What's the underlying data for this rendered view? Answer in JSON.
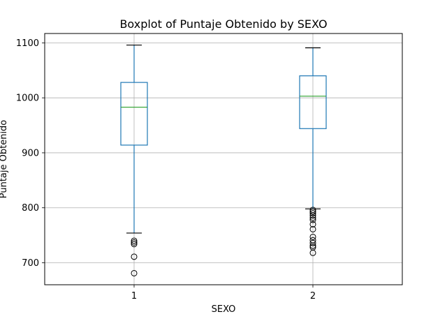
{
  "chart_data": {
    "type": "box",
    "title": "Boxplot of Puntaje Obtenido by SEXO",
    "xlabel": "SEXO",
    "ylabel": "Puntaje Obtenido",
    "categories": [
      "1",
      "2"
    ],
    "ylim": [
      660,
      1117
    ],
    "yticks": [
      700,
      800,
      900,
      1000,
      1100
    ],
    "grid": true,
    "colors": {
      "box": "#1f77b4",
      "median": "#2ca02c",
      "whisker_cap": "#000000",
      "grid": "#b0b0b0"
    },
    "boxes": [
      {
        "category": "1",
        "whisker_low": 754,
        "q1": 914,
        "median": 983,
        "q3": 1028,
        "whisker_high": 1096,
        "outliers": [
          740,
          737,
          734,
          711,
          681
        ]
      },
      {
        "category": "2",
        "whisker_low": 798,
        "q1": 944,
        "median": 1003,
        "q3": 1040,
        "whisker_high": 1091,
        "outliers": [
          796,
          793,
          790,
          786,
          782,
          778,
          770,
          761,
          747,
          741,
          736,
          731,
          728,
          718
        ]
      }
    ]
  }
}
